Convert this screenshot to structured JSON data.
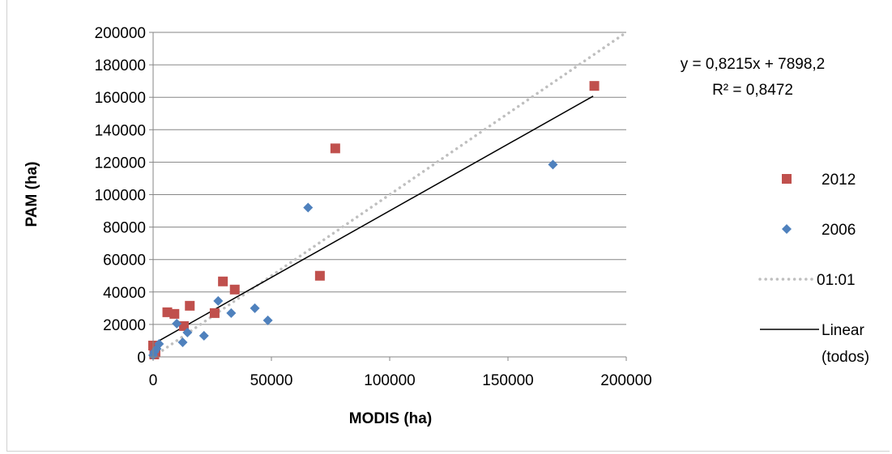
{
  "chart_data": {
    "type": "scatter",
    "xlabel": "MODIS (ha)",
    "ylabel": "PAM (ha)",
    "xlim": [
      0,
      200000
    ],
    "ylim": [
      0,
      200000
    ],
    "x_ticks": [
      "0",
      "50000",
      "100000",
      "150000",
      "200000"
    ],
    "y_ticks": [
      "0",
      "20000",
      "40000",
      "60000",
      "80000",
      "100000",
      "120000",
      "140000",
      "160000",
      "180000",
      "200000"
    ],
    "grid": "horizontal",
    "legend_position": "right",
    "trendline": {
      "equation": "y = 0,8215x + 7898,2",
      "r2": "R² = 0,8472",
      "slope": 0.8215,
      "intercept": 7898.2,
      "x_range": [
        0,
        186000
      ]
    },
    "reference_line": {
      "x": [
        0,
        200000
      ],
      "y": [
        0,
        200000
      ]
    },
    "series": [
      {
        "name": "2012",
        "marker": "square",
        "color": "#c0504d",
        "points": [
          [
            0,
            7000
          ],
          [
            500,
            1500
          ],
          [
            1000,
            3000
          ],
          [
            6000,
            27500
          ],
          [
            9000,
            26500
          ],
          [
            13000,
            19000
          ],
          [
            15500,
            31500
          ],
          [
            26000,
            27000
          ],
          [
            29500,
            46500
          ],
          [
            34500,
            41500
          ],
          [
            70500,
            50000
          ],
          [
            77000,
            128500
          ],
          [
            186500,
            167000
          ]
        ]
      },
      {
        "name": "2006",
        "marker": "diamond",
        "color": "#4f81bd",
        "points": [
          [
            0,
            1000
          ],
          [
            500,
            3000
          ],
          [
            1500,
            5000
          ],
          [
            2500,
            8000
          ],
          [
            10000,
            20500
          ],
          [
            12500,
            9000
          ],
          [
            14500,
            15000
          ],
          [
            21500,
            13000
          ],
          [
            27500,
            34500
          ],
          [
            33000,
            27000
          ],
          [
            43000,
            30000
          ],
          [
            48500,
            22500
          ],
          [
            65500,
            92000
          ],
          [
            169000,
            118500
          ]
        ]
      }
    ],
    "legend": [
      {
        "label": "2012",
        "kind": "square",
        "color": "#c0504d"
      },
      {
        "label": "2006",
        "kind": "diamond",
        "color": "#4f81bd"
      },
      {
        "label": "01:01",
        "kind": "dotted-line",
        "color": "#bfbfbf"
      },
      {
        "label_line1": "Linear",
        "label_line2": "(todos)",
        "kind": "solid-line",
        "color": "#000000"
      }
    ]
  }
}
